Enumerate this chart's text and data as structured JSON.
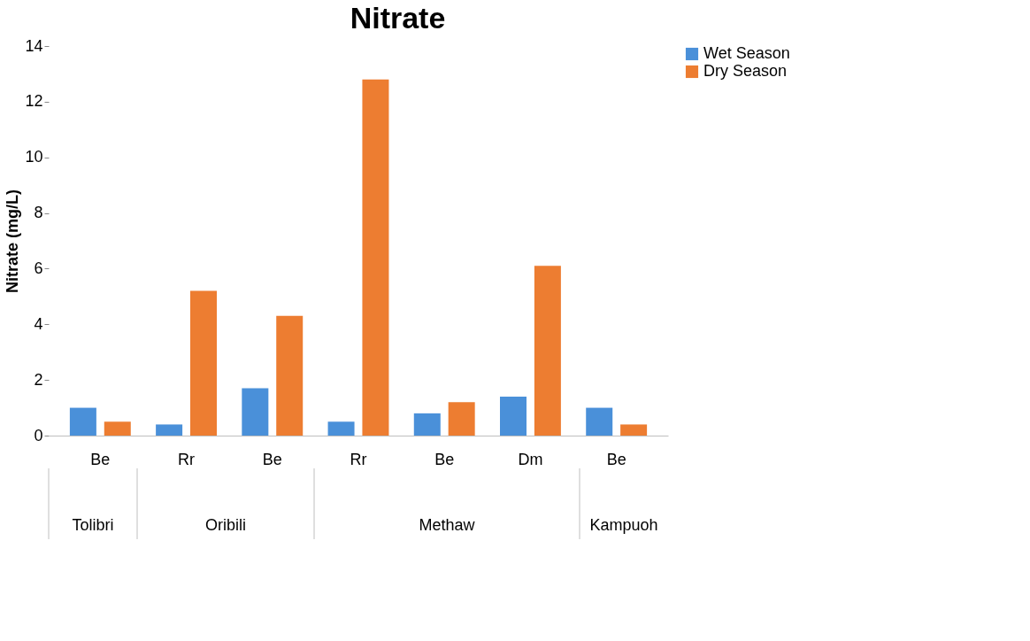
{
  "chart_data": {
    "type": "bar",
    "title": "Nitrate",
    "ylabel": "Nitrate (mg/L)",
    "categories": [
      "Be",
      "Rr",
      "Be",
      "Rr",
      "Be",
      "Dm",
      "Be"
    ],
    "annotations": [
      "Tolibri",
      "Oribili",
      "Methaw",
      "Kampuoh"
    ],
    "series": [
      {
        "name": "Wet Season",
        "color": "#4a90d9",
        "values": [
          1.0,
          0.4,
          1.7,
          0.5,
          0.8,
          1.4,
          1.0
        ]
      },
      {
        "name": "Dry Season",
        "color": "#ed7d31",
        "values": [
          0.5,
          5.2,
          4.3,
          12.8,
          1.2,
          6.1,
          0.4
        ]
      }
    ],
    "ylim": [
      0,
      14
    ],
    "yticks": [
      0,
      2,
      4,
      6,
      8,
      10,
      12,
      14
    ],
    "grid": false,
    "legend": "right"
  }
}
